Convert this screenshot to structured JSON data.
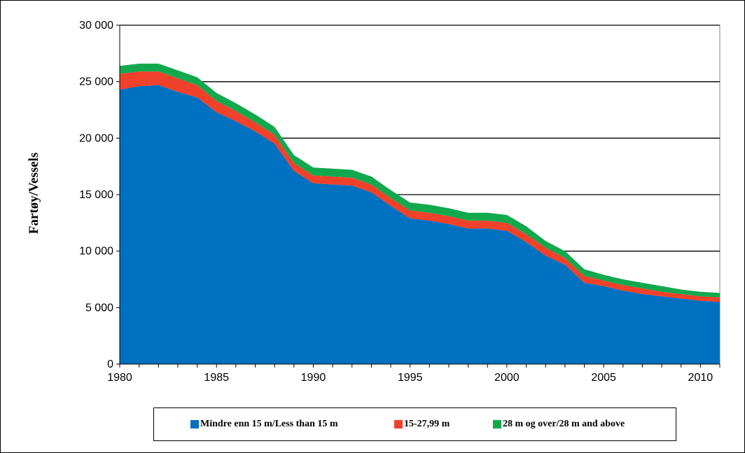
{
  "chart_data": {
    "type": "area",
    "stacked": true,
    "title": "",
    "xlabel": "",
    "ylabel": "Fartøy/Vessels",
    "xlim": [
      1980,
      2011
    ],
    "ylim": [
      0,
      30000
    ],
    "x_ticks": [
      "1980",
      "1985",
      "1990",
      "1995",
      "2000",
      "2005",
      "2010"
    ],
    "y_ticks": [
      "0",
      "5 000",
      "10 000",
      "15 000",
      "20 000",
      "25 000",
      "30 000"
    ],
    "grid": "horizontal",
    "legend_position": "bottom",
    "x": [
      1980,
      1981,
      1982,
      1983,
      1984,
      1985,
      1986,
      1987,
      1988,
      1989,
      1990,
      1991,
      1992,
      1993,
      1994,
      1995,
      1996,
      1997,
      1998,
      1999,
      2000,
      2001,
      2002,
      2003,
      2004,
      2005,
      2006,
      2007,
      2008,
      2009,
      2010,
      2011
    ],
    "series": [
      {
        "name": "Mindre enn 15 m/Less than 15 m",
        "color": "#0070C0",
        "values": [
          24300,
          24600,
          24700,
          24100,
          23600,
          22300,
          21500,
          20600,
          19500,
          17100,
          16000,
          15900,
          15800,
          15200,
          14000,
          12900,
          12700,
          12400,
          12000,
          12000,
          11800,
          10800,
          9600,
          8800,
          7200,
          6900,
          6500,
          6200,
          6000,
          5800,
          5600,
          5500
        ]
      },
      {
        "name": "15-27,99 m",
        "color": "#F0412A",
        "values": [
          1400,
          1300,
          1200,
          1200,
          1100,
          1000,
          900,
          800,
          800,
          700,
          700,
          700,
          700,
          700,
          700,
          700,
          700,
          700,
          700,
          700,
          700,
          700,
          700,
          600,
          600,
          500,
          500,
          500,
          400,
          400,
          400,
          400
        ]
      },
      {
        "name": "28 m og over/28 m and above",
        "color": "#12A84E",
        "values": [
          700,
          700,
          700,
          700,
          700,
          700,
          700,
          700,
          700,
          700,
          700,
          700,
          700,
          700,
          700,
          700,
          700,
          700,
          700,
          700,
          700,
          700,
          600,
          600,
          600,
          500,
          500,
          500,
          500,
          400,
          400,
          400
        ]
      }
    ]
  }
}
